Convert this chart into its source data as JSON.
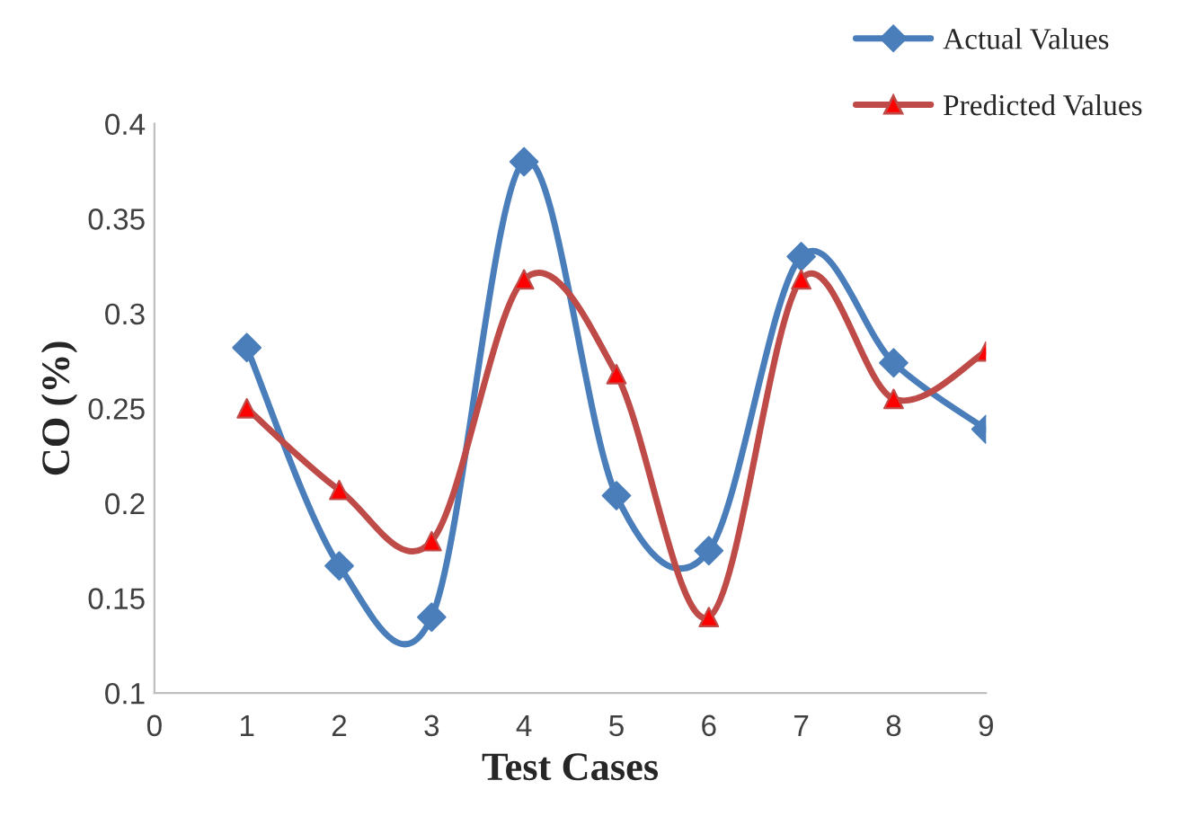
{
  "chart_data": {
    "type": "line",
    "xlabel": "Test Cases",
    "ylabel": "CO (%)",
    "x": [
      1,
      2,
      3,
      4,
      5,
      6,
      7,
      8,
      9
    ],
    "series": [
      {
        "name": "Actual Values",
        "color": "#4a7ebb",
        "marker": "diamond",
        "values": [
          0.282,
          0.167,
          0.14,
          0.38,
          0.204,
          0.175,
          0.33,
          0.274,
          0.239
        ]
      },
      {
        "name": "Predicted Values",
        "color": "#be4b48",
        "marker": "triangle",
        "values": [
          0.25,
          0.207,
          0.18,
          0.318,
          0.268,
          0.14,
          0.318,
          0.255,
          0.28
        ]
      }
    ],
    "xlim": [
      0,
      9
    ],
    "xticks": [
      0,
      1,
      2,
      3,
      4,
      5,
      6,
      7,
      8,
      9
    ],
    "ylim": [
      0.1,
      0.4
    ],
    "yticks": [
      0.1,
      0.15,
      0.2,
      0.25,
      0.3,
      0.35,
      0.4
    ],
    "grid": false,
    "legend": "top right"
  }
}
